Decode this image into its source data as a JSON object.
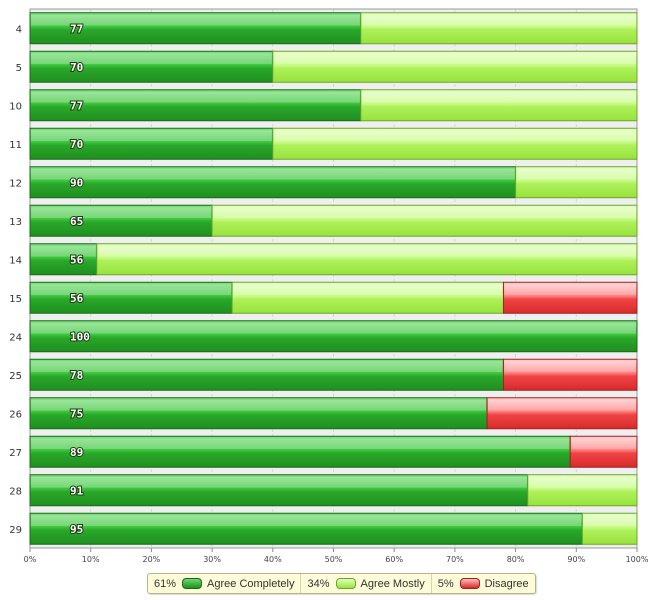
{
  "chart_data": {
    "type": "bar",
    "orientation": "horizontal",
    "stacked": true,
    "percent_scale": true,
    "categories": [
      "4",
      "5",
      "10",
      "11",
      "12",
      "13",
      "14",
      "15",
      "24",
      "25",
      "26",
      "27",
      "28",
      "29"
    ],
    "scores": [
      "77",
      "70",
      "77",
      "70",
      "90",
      "65",
      "56",
      "56",
      "100",
      "78",
      "75",
      "89",
      "91",
      "95"
    ],
    "series": [
      {
        "name": "Agree Completely",
        "color": "#2fb52f",
        "values": [
          54.5,
          40,
          54.5,
          40,
          80,
          30,
          11,
          33.3,
          100,
          78,
          75.3,
          89,
          82,
          91
        ]
      },
      {
        "name": "Agree Mostly",
        "color": "#b6f56a",
        "values": [
          45.5,
          60,
          45.5,
          60,
          20,
          70,
          89,
          44.7,
          0,
          0,
          0,
          0,
          18,
          9
        ]
      },
      {
        "name": "Disagree",
        "color": "#f04a4a",
        "values": [
          0,
          0,
          0,
          0,
          0,
          0,
          0,
          22,
          0,
          22,
          24.7,
          11,
          0,
          0
        ]
      }
    ],
    "x_ticks": [
      "0%",
      "10%",
      "20%",
      "30%",
      "40%",
      "50%",
      "60%",
      "70%",
      "80%",
      "90%",
      "100%"
    ],
    "xlim": [
      0,
      100
    ],
    "grid": true,
    "legend_position": "bottom"
  },
  "legend": {
    "items": [
      {
        "pct": "61%",
        "label": "Agree Completely",
        "color": "#2fb52f"
      },
      {
        "pct": "34%",
        "label": "Agree Mostly",
        "color": "#b6f56a"
      },
      {
        "pct": "5%",
        "label": "Disagree",
        "color": "#f04a4a"
      }
    ]
  }
}
